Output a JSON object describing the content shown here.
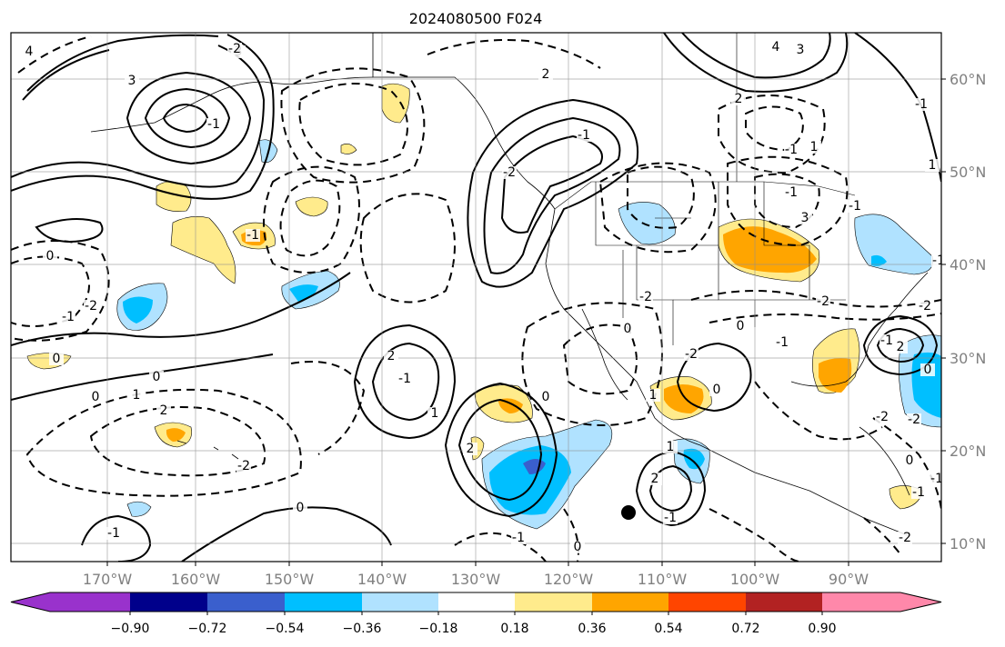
{
  "title": "2024080500 F024",
  "map": {
    "longitude_labels": [
      "170°W",
      "160°W",
      "150°W",
      "140°W",
      "130°W",
      "120°W",
      "110°W",
      "100°W",
      "90°W"
    ],
    "latitude_labels": [
      "60°N",
      "50°N",
      "40°N",
      "30°N",
      "20°N",
      "10°N"
    ],
    "gridlines": true,
    "contour_labels": [
      "4",
      "3",
      "3",
      "3",
      "4",
      "-2",
      "-1",
      "-2",
      "0",
      "-1",
      "2",
      "-1",
      "1",
      "-1",
      "0",
      "2",
      "0",
      "1",
      "0",
      "2",
      "1",
      "-1",
      "0",
      "-1",
      "-2",
      "2",
      "-1",
      "0",
      "-2",
      "0",
      "-1",
      "-2",
      "2",
      "-1",
      "1",
      "-1",
      "3",
      "-2",
      "2",
      "0",
      "-1",
      "0",
      "-1",
      "-2",
      "-2",
      "0",
      "-1",
      "2",
      "1",
      "-1",
      "-2",
      "-1",
      "0",
      "1",
      "0",
      "-2",
      "-2",
      "-1",
      "-1"
    ],
    "marker": "black dot"
  },
  "colorbar": {
    "tick_labels": [
      "−0.90",
      "−0.72",
      "−0.54",
      "−0.36",
      "−0.18",
      "0.18",
      "0.36",
      "0.54",
      "0.72",
      "0.90"
    ],
    "colors": [
      "#9932cc",
      "#00008b",
      "#3a5fcd",
      "#00bfff",
      "#b0e2ff",
      "#ffffff",
      "#ffeb8c",
      "#ffa500",
      "#ff4500",
      "#b22222",
      "#ff88aa"
    ],
    "extend": "both"
  }
}
